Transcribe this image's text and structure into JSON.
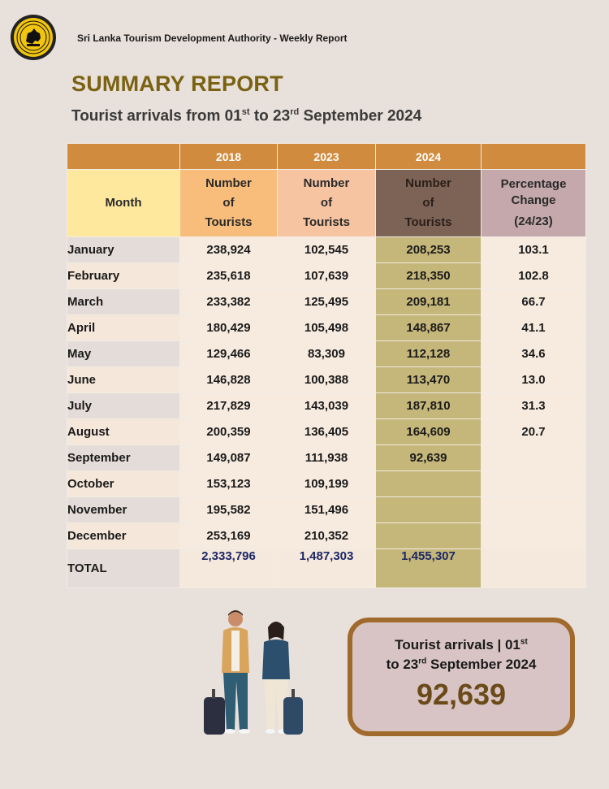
{
  "header": {
    "org_line": "Sri Lanka Tourism Development Authority - Weekly Report",
    "title": "SUMMARY REPORT",
    "subtitle_pre": "Tourist arrivals from 01",
    "subtitle_sup1": "st",
    "subtitle_mid": " to 23",
    "subtitle_sup2": "rd",
    "subtitle_post": " September 2024"
  },
  "table": {
    "years": [
      "2018",
      "2023",
      "2024"
    ],
    "month_header": "Month",
    "num_line1": "Number",
    "num_line2": "of",
    "num_line3": "Tourists",
    "pct_line1": "Percentage",
    "pct_line2": "Change",
    "pct_line3": "(24/23)",
    "rows": [
      {
        "month": "January",
        "y2018": "238,924",
        "y2023": "102,545",
        "y2024": "208,253",
        "pct": "103.1"
      },
      {
        "month": "February",
        "y2018": "235,618",
        "y2023": "107,639",
        "y2024": "218,350",
        "pct": "102.8"
      },
      {
        "month": "March",
        "y2018": "233,382",
        "y2023": "125,495",
        "y2024": "209,181",
        "pct": "66.7"
      },
      {
        "month": "April",
        "y2018": "180,429",
        "y2023": "105,498",
        "y2024": "148,867",
        "pct": "41.1"
      },
      {
        "month": "May",
        "y2018": "129,466",
        "y2023": "83,309",
        "y2024": "112,128",
        "pct": "34.6"
      },
      {
        "month": "June",
        "y2018": "146,828",
        "y2023": "100,388",
        "y2024": "113,470",
        "pct": "13.0"
      },
      {
        "month": "July",
        "y2018": "217,829",
        "y2023": "143,039",
        "y2024": "187,810",
        "pct": "31.3"
      },
      {
        "month": "August",
        "y2018": "200,359",
        "y2023": "136,405",
        "y2024": "164,609",
        "pct": "20.7"
      },
      {
        "month": "September",
        "y2018": "149,087",
        "y2023": "111,938",
        "y2024": "92,639",
        "pct": ""
      },
      {
        "month": "October",
        "y2018": "153,123",
        "y2023": "109,199",
        "y2024": "",
        "pct": ""
      },
      {
        "month": "November",
        "y2018": "195,582",
        "y2023": "151,496",
        "y2024": "",
        "pct": ""
      },
      {
        "month": "December",
        "y2018": "253,169",
        "y2023": "210,352",
        "y2024": "",
        "pct": ""
      }
    ],
    "total": {
      "label": "TOTAL",
      "y2018": "2,333,796",
      "y2023": "1,487,303",
      "y2024": "1,455,307"
    }
  },
  "summary_box": {
    "line1_pre": "Tourist arrivals | 01",
    "line1_sup": "st",
    "line2_pre": "to 23",
    "line2_sup": "rd",
    "line2_post": " September 2024",
    "value": "92,639"
  },
  "colors": {
    "title": "#7a6212",
    "year_header": "#d08b3e",
    "col_2024": "#c5b679",
    "total_numbers": "#1c2766",
    "box_border": "#a06a2c"
  },
  "icons": [
    "sltda-emblem-logo",
    "travelers-illustration"
  ]
}
